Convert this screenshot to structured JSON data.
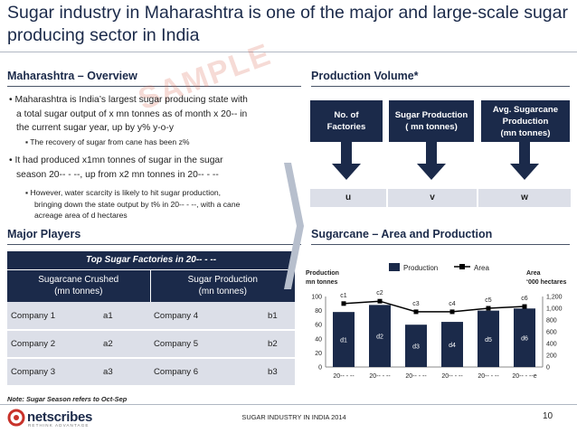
{
  "title": "Sugar industry in Maharashtra is one of the major and large-scale sugar producing sector in India",
  "overview": {
    "heading": "Maharashtra – Overview",
    "watermark": "SAMPLE",
    "bullet1": {
      "line1": "Maharashtra is India’s largest sugar producing state with",
      "line2": "a total sugar output of x mn tonnes as of month x 20-- in",
      "line3": "the current sugar year, up by y% y-o-y",
      "sub1": "The recovery of sugar from cane has been z%"
    },
    "bullet2": {
      "line1": "It had produced x1mn tonnes of sugar in the sugar",
      "line2": "season 20-- - --, up from x2 mn tonnes in 20-- - --",
      "sub1_line1": "However, water scarcity is likely to hit sugar production,",
      "sub1_line2": "bringing down the state output by t% in 20-- - --, with a cane",
      "sub1_line3": "acreage area of d hectares"
    }
  },
  "major_players": {
    "heading": "Major Players",
    "table_title": "Top Sugar Factories in 20-- - --",
    "col1_header_line1": "Sugarcane Crushed",
    "col1_header_line2": "(mn tonnes)",
    "col2_header_line1": "Sugar Production",
    "col2_header_line2": "(mn tonnes)",
    "rows": [
      {
        "c1": "Company 1",
        "v1": "a1",
        "c2": "Company 4",
        "v2": "b1"
      },
      {
        "c1": "Company 2",
        "v1": "a2",
        "c2": "Company 5",
        "v2": "b2"
      },
      {
        "c1": "Company 3",
        "v1": "a3",
        "c2": "Company 6",
        "v2": "b3"
      }
    ],
    "note": "Note: Sugar Season refers to Oct-Sep"
  },
  "production_volume": {
    "heading": "Production Volume*",
    "col1_line1": "No. of",
    "col1_line2": "Factories",
    "col2_line1": "Sugar Production",
    "col2_line2": "( mn tonnes)",
    "col3_line1": "Avg. Sugarcane",
    "col3_line2": "Production",
    "col3_line3": "(mn tonnes)",
    "val1": "u",
    "val2": "v",
    "val3": "w"
  },
  "sugarcane": {
    "heading": "Sugarcane – Area and Production"
  },
  "chart_data": {
    "type": "bar",
    "title": "",
    "left_axis_label_line1": "Production",
    "left_axis_label_line2": "mn tonnes",
    "right_axis_label_line1": "Area",
    "right_axis_label_line2": "‘000 hectares",
    "legend": [
      "Production",
      "Area"
    ],
    "categories": [
      "20-- - --",
      "20-- - --",
      "20-- - --",
      "20-- - --",
      "20-- - --",
      "20-- - --e"
    ],
    "ylim": [
      0,
      100
    ],
    "y2lim": [
      0,
      1200
    ],
    "yticks": [
      "0",
      "20",
      "40",
      "60",
      "80",
      "100"
    ],
    "y2ticks": [
      "0",
      "200",
      "400",
      "600",
      "800",
      "1,000",
      "1,200"
    ],
    "series": [
      {
        "name": "Production",
        "type": "bar",
        "values": [
          78,
          88,
          60,
          64,
          80,
          83
        ],
        "labels": [
          "d1",
          "d2",
          "d3",
          "d4",
          "d5",
          "d6"
        ]
      },
      {
        "name": "Area",
        "type": "line",
        "values": [
          1080,
          1120,
          940,
          940,
          1000,
          1030
        ],
        "labels": [
          "c1",
          "c2",
          "c3",
          "c4",
          "c5",
          "c6"
        ]
      }
    ],
    "colors": {
      "bar": "#1b2a4a",
      "line": "#000000"
    }
  },
  "footer": {
    "center": "SUGAR INDUSTRY IN INDIA 2014",
    "page": "10",
    "logo": "netscribes",
    "tagline": "RETHINK ADVANTAGE"
  }
}
